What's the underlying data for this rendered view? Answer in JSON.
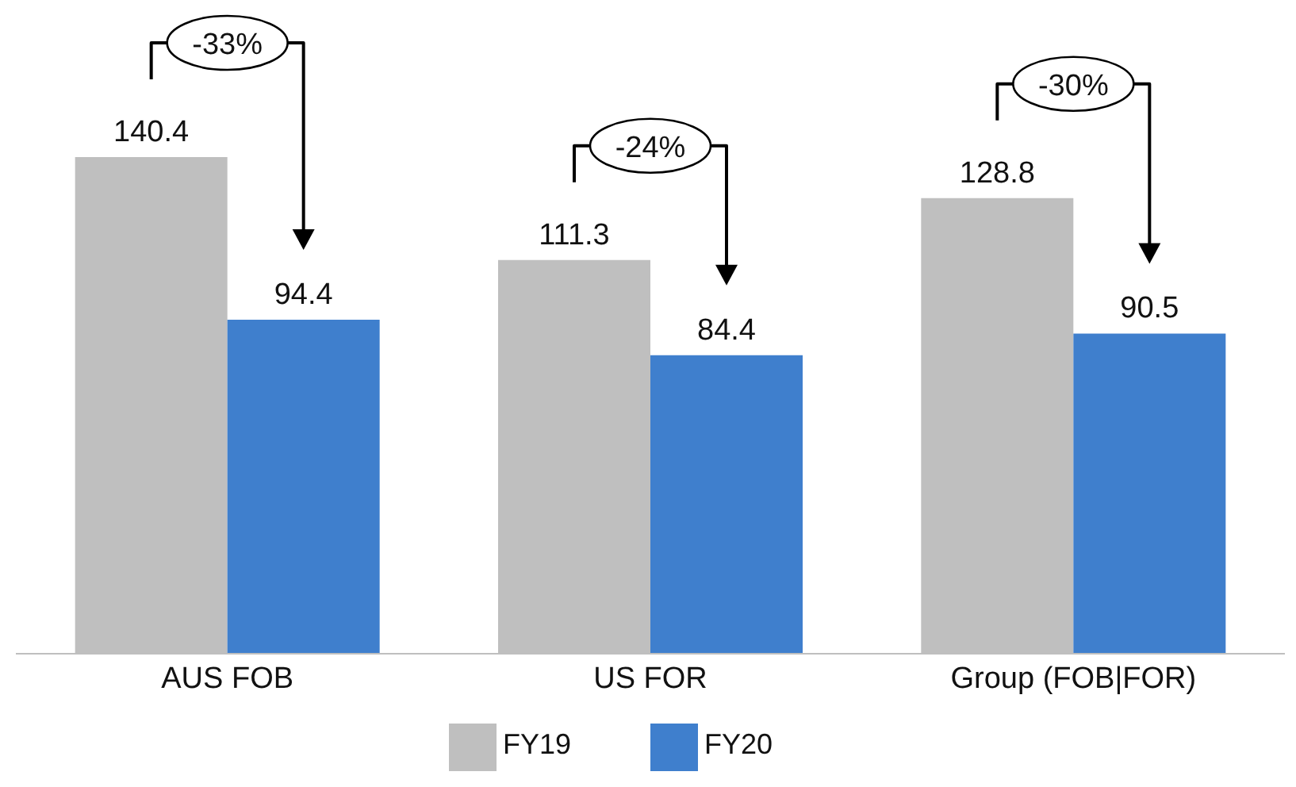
{
  "chart_data": {
    "type": "bar",
    "categories": [
      "AUS FOB",
      "US FOR",
      "Group (FOB|FOR)"
    ],
    "series": [
      {
        "name": "FY19",
        "color": "#bfbfbf",
        "values": [
          140.4,
          111.3,
          128.8
        ]
      },
      {
        "name": "FY20",
        "color": "#3f7fcd",
        "values": [
          94.4,
          84.4,
          90.5
        ]
      }
    ],
    "data_labels": true,
    "legend": "bottom",
    "annotations": [
      "-33%",
      "-24%",
      "-30%"
    ]
  }
}
